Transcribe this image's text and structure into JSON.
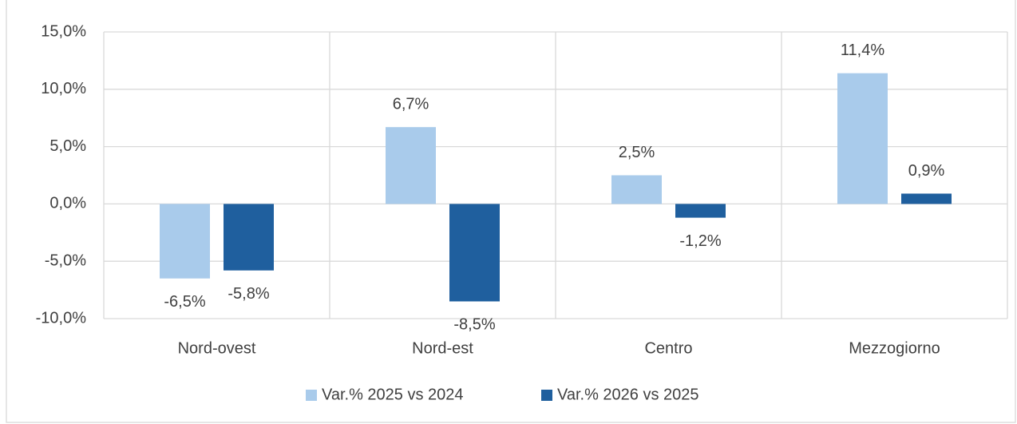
{
  "chart_data": {
    "type": "bar",
    "categories": [
      "Nord-ovest",
      "Nord-est",
      "Centro",
      "Mezzogiorno"
    ],
    "series": [
      {
        "name": "Var.% 2025 vs 2024",
        "color": "#a9cbeb",
        "values": [
          -6.5,
          6.7,
          2.5,
          11.4
        ],
        "value_labels": [
          "-6,5%",
          "6,7%",
          "2,5%",
          "11,4%"
        ]
      },
      {
        "name": "Var.% 2026 vs 2025",
        "color": "#1f5f9e",
        "values": [
          -5.8,
          -8.5,
          -1.2,
          0.9
        ],
        "value_labels": [
          "-5,8%",
          "-8,5%",
          "-1,2%",
          "0,9%"
        ]
      }
    ],
    "ylim": [
      -10,
      15
    ],
    "yticks": [
      {
        "value": -10,
        "label": "-10,0%"
      },
      {
        "value": -5,
        "label": "-5,0%"
      },
      {
        "value": 0,
        "label": "0,0%"
      },
      {
        "value": 5,
        "label": "5,0%"
      },
      {
        "value": 10,
        "label": "10,0%"
      },
      {
        "value": 15,
        "label": "15,0%"
      }
    ],
    "grid": true,
    "legend": "bottom"
  }
}
